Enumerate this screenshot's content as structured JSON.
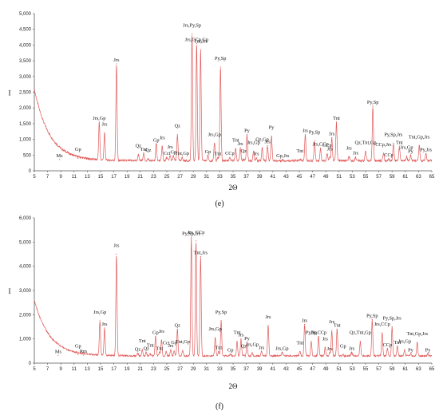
{
  "chart_data": [
    {
      "type": "line",
      "caption": "(e)",
      "xlabel": "2Θ",
      "ylabel": "I",
      "xlim": [
        5,
        65
      ],
      "ylim": [
        0,
        5000
      ],
      "x_ticks": [
        "5",
        "7",
        "9",
        "11",
        "13",
        "15",
        "17",
        "19",
        "21",
        "23",
        "25",
        "27",
        "29",
        "31",
        "33",
        "35",
        "37",
        "39",
        "41",
        "43",
        "45",
        "47",
        "49",
        "51",
        "53",
        "55",
        "57",
        "59",
        "61",
        "63",
        "65"
      ],
      "y_ticks": [
        "0",
        "500",
        "1,000",
        "1,500",
        "2,000",
        "2,500",
        "3,000",
        "3,500",
        "4,000",
        "4,500",
        "5,000"
      ],
      "color": "#e05a5a",
      "background": {
        "start": 2600,
        "floor": 320,
        "decay": 2.3
      },
      "peaks": [
        {
          "x": 8.8,
          "y": 360,
          "label": "Ms"
        },
        {
          "x": 11.6,
          "y": 400,
          "label": "Gp"
        },
        {
          "x": 14.8,
          "y": 1550,
          "label": "Jrs,Gp"
        },
        {
          "x": 15.6,
          "y": 1200,
          "label": "Jrs"
        },
        {
          "x": 17.4,
          "y": 3400,
          "label": "Jrs"
        },
        {
          "x": 20.7,
          "y": 520,
          "label": "Qz"
        },
        {
          "x": 21.5,
          "y": 560,
          "label": "Tnt"
        },
        {
          "x": 22.2,
          "y": 380,
          "label": "Qz"
        },
        {
          "x": 23.4,
          "y": 850,
          "label": "Gp"
        },
        {
          "x": 24.3,
          "y": 780,
          "label": "Jrs"
        },
        {
          "x": 25.0,
          "y": 430,
          "label": "Cct"
        },
        {
          "x": 25.5,
          "y": 480,
          "label": "Jrs"
        },
        {
          "x": 26.0,
          "y": 470,
          "label": "Gp"
        },
        {
          "x": 26.6,
          "y": 1150,
          "label": "Qz"
        },
        {
          "x": 27.3,
          "y": 430,
          "label": "Tnt,Gp"
        },
        {
          "x": 28.8,
          "y": 4350,
          "label": "Jrs,Py,Sp"
        },
        {
          "x": 29.5,
          "y": 4050,
          "label": "Jrs,CCp,Gp"
        },
        {
          "x": 30.1,
          "y": 3850,
          "label": "Tnt,Jrs"
        },
        {
          "x": 31.2,
          "y": 480,
          "label": "Gp"
        },
        {
          "x": 32.2,
          "y": 880,
          "label": "Jrs,Gp"
        },
        {
          "x": 32.7,
          "y": 420,
          "label": "Tnt"
        },
        {
          "x": 33.1,
          "y": 3300,
          "label": "Py,Sp"
        },
        {
          "x": 34.5,
          "y": 430,
          "label": "CCp"
        },
        {
          "x": 35.4,
          "y": 700,
          "label": "Tnt"
        },
        {
          "x": 36.1,
          "y": 730,
          "label": "Jrs"
        },
        {
          "x": 36.6,
          "y": 360,
          "label": "Qz"
        },
        {
          "x": 37.1,
          "y": 1150,
          "label": "Py"
        },
        {
          "x": 38.1,
          "y": 620,
          "label": "Jrs,Gp"
        },
        {
          "x": 38.5,
          "y": 420,
          "label": "Jrs"
        },
        {
          "x": 39.4,
          "y": 720,
          "label": "Qz,Gp"
        },
        {
          "x": 40.2,
          "y": 800,
          "label": "Jrs"
        },
        {
          "x": 40.8,
          "y": 1100,
          "label": "Py"
        },
        {
          "x": 42.5,
          "y": 350,
          "label": "Gp,Jrs"
        },
        {
          "x": 45.1,
          "y": 360,
          "label": "Tnt"
        },
        {
          "x": 45.9,
          "y": 1150,
          "label": "Jrs"
        },
        {
          "x": 47.3,
          "y": 950,
          "label": "Py,Sp"
        },
        {
          "x": 48.2,
          "y": 720,
          "label": "Jrs,CCp"
        },
        {
          "x": 49.2,
          "y": 530,
          "label": "CCp"
        },
        {
          "x": 49.9,
          "y": 1050,
          "label": "Jrs"
        },
        {
          "x": 49.6,
          "y": 420,
          "label": "Jrs"
        },
        {
          "x": 50.6,
          "y": 1550,
          "label": "Tnt"
        },
        {
          "x": 52.5,
          "y": 450,
          "label": "Jrs"
        },
        {
          "x": 53.5,
          "y": 440,
          "label": "Jrs"
        },
        {
          "x": 55.0,
          "y": 620,
          "label": "Qz,Tnt,Gp"
        },
        {
          "x": 56.1,
          "y": 2050,
          "label": "Py,Sp"
        },
        {
          "x": 57.7,
          "y": 560,
          "label": "CCp,Jrs"
        },
        {
          "x": 58.5,
          "y": 380,
          "label": "CCp"
        },
        {
          "x": 59.2,
          "y": 880,
          "label": "Py,Sp,Jrs"
        },
        {
          "x": 60.1,
          "y": 780,
          "label": "Tnt"
        },
        {
          "x": 61.2,
          "y": 470,
          "label": "Jrs,Gp"
        },
        {
          "x": 61.8,
          "y": 500,
          "label": "Py"
        },
        {
          "x": 63.1,
          "y": 800,
          "label": "Tnt,Gp,Jrs"
        },
        {
          "x": 64.1,
          "y": 540,
          "label": "Py,Jrs"
        }
      ]
    },
    {
      "type": "line",
      "caption": "(f)",
      "xlabel": "2Θ",
      "ylabel": "I",
      "xlim": [
        5,
        65
      ],
      "ylim": [
        0,
        6000
      ],
      "x_ticks": [
        "5",
        "7",
        "9",
        "11",
        "13",
        "15",
        "17",
        "19",
        "21",
        "23",
        "25",
        "27",
        "29",
        "31",
        "33",
        "35",
        "37",
        "39",
        "41",
        "43",
        "45",
        "47",
        "49",
        "51",
        "53",
        "55",
        "57",
        "59",
        "61",
        "63",
        "65"
      ],
      "y_ticks": [
        "0",
        "1,000",
        "2,000",
        "3,000",
        "4,000",
        "5,000",
        "6,000"
      ],
      "color": "#e05a5a",
      "background": {
        "start": 2600,
        "floor": 300,
        "decay": 2.3
      },
      "peaks": [
        {
          "x": 8.6,
          "y": 320,
          "label": "Ms"
        },
        {
          "x": 11.6,
          "y": 350,
          "label": "Gp"
        },
        {
          "x": 12.4,
          "y": 330,
          "label": "Rm"
        },
        {
          "x": 14.9,
          "y": 1750,
          "label": "Jrs,Gp"
        },
        {
          "x": 15.6,
          "y": 1450,
          "label": "Jrs"
        },
        {
          "x": 17.4,
          "y": 4500,
          "label": "Jrs"
        },
        {
          "x": 20.6,
          "y": 420,
          "label": "Qz"
        },
        {
          "x": 21.3,
          "y": 560,
          "label": "Tnt"
        },
        {
          "x": 21.9,
          "y": 450,
          "label": "Qz"
        },
        {
          "x": 22.5,
          "y": 380,
          "label": "Tnt"
        },
        {
          "x": 23.3,
          "y": 1100,
          "label": "Gp"
        },
        {
          "x": 24.2,
          "y": 950,
          "label": "Jrs"
        },
        {
          "x": 23.9,
          "y": 450,
          "label": "Tnt"
        },
        {
          "x": 24.9,
          "y": 480,
          "label": "Cct"
        },
        {
          "x": 25.6,
          "y": 560,
          "label": "Jrs"
        },
        {
          "x": 26.1,
          "y": 500,
          "label": "Gp"
        },
        {
          "x": 26.6,
          "y": 1400,
          "label": "Qz"
        },
        {
          "x": 27.4,
          "y": 520,
          "label": "Tnt,Gp"
        },
        {
          "x": 28.7,
          "y": 5200,
          "label": "Py,Sp,Jrs"
        },
        {
          "x": 29.4,
          "y": 5050,
          "label": "Jrs, CCp"
        },
        {
          "x": 30.1,
          "y": 4400,
          "label": "Tnt,Jrs"
        },
        {
          "x": 32.3,
          "y": 1050,
          "label": "Jrs,Gp"
        },
        {
          "x": 32.8,
          "y": 480,
          "label": "Tnt"
        },
        {
          "x": 33.2,
          "y": 1750,
          "label": "Py,Sp"
        },
        {
          "x": 34.6,
          "y": 380,
          "label": "Gp"
        },
        {
          "x": 35.6,
          "y": 900,
          "label": "Tnt"
        },
        {
          "x": 36.2,
          "y": 1000,
          "label": "Jrs"
        },
        {
          "x": 36.6,
          "y": 350,
          "label": "Qz"
        },
        {
          "x": 37.1,
          "y": 850,
          "label": "Py"
        },
        {
          "x": 37.9,
          "y": 420,
          "label": "Jrs,Gp"
        },
        {
          "x": 39.3,
          "y": 480,
          "label": "Jrs"
        },
        {
          "x": 40.3,
          "y": 1550,
          "label": "Jrs"
        },
        {
          "x": 42.4,
          "y": 450,
          "label": "Jrs,Gp"
        },
        {
          "x": 45.1,
          "y": 480,
          "label": "Tnt"
        },
        {
          "x": 45.8,
          "y": 1600,
          "label": "Jrs"
        },
        {
          "x": 46.8,
          "y": 900,
          "label": "Py,Sp"
        },
        {
          "x": 47.9,
          "y": 1100,
          "label": "Jrs,CCp"
        },
        {
          "x": 48.9,
          "y": 650,
          "label": "Jrs"
        },
        {
          "x": 49.6,
          "y": 430,
          "label": "Jrs"
        },
        {
          "x": 49.9,
          "y": 1350,
          "label": "Jrs"
        },
        {
          "x": 50.7,
          "y": 1400,
          "label": "Tnt"
        },
        {
          "x": 51.6,
          "y": 350,
          "label": "Gp"
        },
        {
          "x": 52.9,
          "y": 450,
          "label": "Jrs"
        },
        {
          "x": 54.2,
          "y": 900,
          "label": "Qz,Tnt,Gp"
        },
        {
          "x": 56.0,
          "y": 1800,
          "label": "Py,Sp"
        },
        {
          "x": 57.5,
          "y": 1250,
          "label": "Jrs,CCp"
        },
        {
          "x": 58.3,
          "y": 600,
          "label": "CCp"
        },
        {
          "x": 59.0,
          "y": 1500,
          "label": "Py,Sp,Jrs"
        },
        {
          "x": 59.8,
          "y": 700,
          "label": "Tnt"
        },
        {
          "x": 60.9,
          "y": 550,
          "label": "Jrs,Gp"
        },
        {
          "x": 61.8,
          "y": 380,
          "label": "Py"
        },
        {
          "x": 62.8,
          "y": 850,
          "label": "Tnt,Gp,Jrs"
        },
        {
          "x": 64.4,
          "y": 380,
          "label": "Py"
        }
      ]
    }
  ]
}
